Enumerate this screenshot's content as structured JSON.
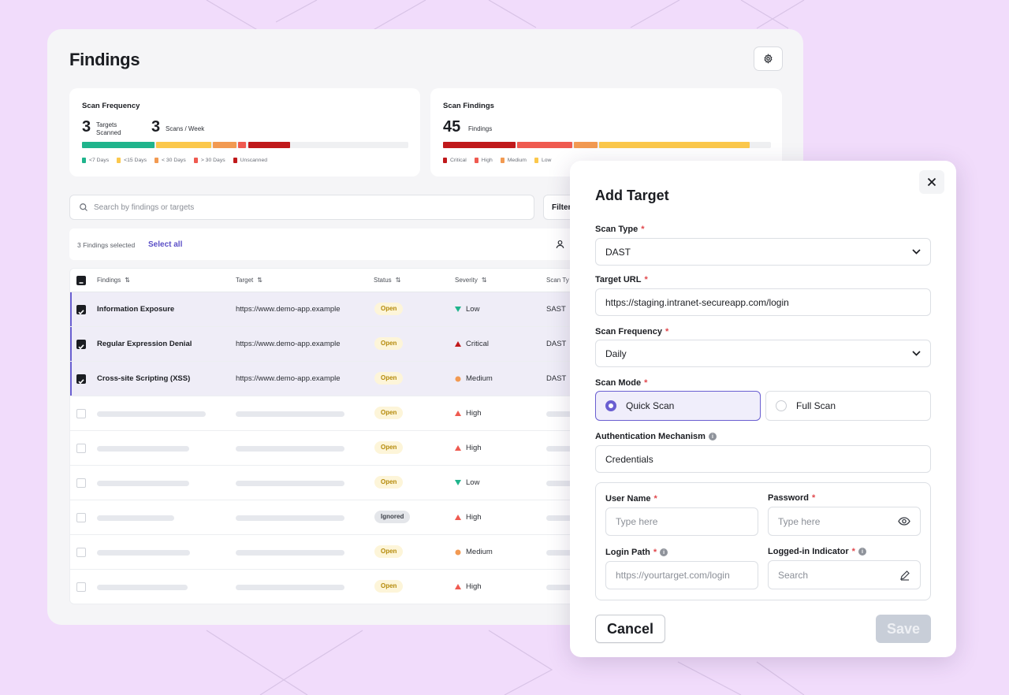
{
  "colors": {
    "accent": "#6a5fd1",
    "background": "#f1dcfb",
    "freq_lt7": "#1fb48c",
    "freq_lt15": "#fbc84c",
    "freq_lt30": "#f29a52",
    "freq_gt30": "#ef5a50",
    "freq_unscanned": "#c0191b",
    "sev_critical": "#c0191b",
    "sev_high": "#ef5a50",
    "sev_medium": "#f29a52",
    "sev_low": "#fbc84c"
  },
  "page": {
    "title": "Findings",
    "settings_icon": "gear-icon"
  },
  "scan_frequency": {
    "title": "Scan Frequency",
    "targets_count": "3",
    "targets_label_1": "Targets",
    "targets_label_2": "Scanned",
    "scans_count": "3",
    "scans_label": "Scans / Week",
    "legend": [
      "<7 Days",
      "<15 Days",
      "< 30 Days",
      "> 30 Days",
      "Unscanned"
    ]
  },
  "scan_findings": {
    "title": "Scan Findings",
    "count": "45",
    "count_label": "Findings",
    "legend": [
      "Critical",
      "High",
      "Medium",
      "Low"
    ]
  },
  "search": {
    "placeholder": "Search by findings or targets",
    "filter_label": "Filter"
  },
  "selection": {
    "count_text": "3 Findings selected",
    "select_all": "Select all"
  },
  "table": {
    "headers": [
      "Findings",
      "Target",
      "Status",
      "Severity",
      "Scan Ty"
    ],
    "rows": [
      {
        "finding": "Information Exposure",
        "target": "https://www.demo-app.example",
        "status": "Open",
        "severity": "Low",
        "scan": "SAST"
      },
      {
        "finding": "Regular Expression Denial",
        "target": "https://www.demo-app.example",
        "status": "Open",
        "severity": "Critical",
        "scan": "DAST"
      },
      {
        "finding": "Cross-site Scripting (XSS)",
        "target": "https://www.demo-app.example",
        "status": "Open",
        "severity": "Medium",
        "scan": "DAST"
      },
      {
        "status": "Open",
        "severity": "High"
      },
      {
        "status": "Open",
        "severity": "High"
      },
      {
        "status": "Open",
        "severity": "Low"
      },
      {
        "status": "Ignored",
        "severity": "High"
      },
      {
        "status": "Open",
        "severity": "Medium"
      },
      {
        "status": "Open",
        "severity": "High"
      }
    ]
  },
  "modal": {
    "title": "Add Target",
    "scan_type_label": "Scan Type",
    "scan_type_value": "DAST",
    "target_url_label": "Target URL",
    "target_url_value": "https://staging.intranet-secureapp.com/login",
    "scan_frequency_label": "Scan Frequency",
    "scan_frequency_value": "Daily",
    "scan_mode_label": "Scan Mode",
    "scan_mode_quick": "Quick Scan",
    "scan_mode_full": "Full Scan",
    "auth_label": "Authentication Mechanism",
    "auth_value": "Credentials",
    "username_label": "User Name",
    "username_placeholder": "Type here",
    "password_label": "Password",
    "password_placeholder": "Type here",
    "login_path_label": "Login Path",
    "login_path_placeholder": "https://yourtarget.com/login",
    "logged_in_label": "Logged-in Indicator",
    "logged_in_placeholder": "Search",
    "required_mark": "*",
    "info_mark": "i",
    "cancel": "Cancel",
    "save": "Save"
  }
}
